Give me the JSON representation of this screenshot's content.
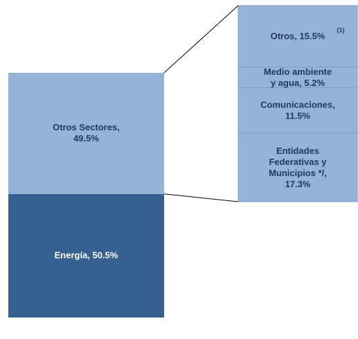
{
  "chart_data": {
    "type": "bar_of_bar",
    "main": [
      {
        "label": [
          "Energía, 50.5%"
        ],
        "value": 50.5,
        "color": "#366092",
        "text_color": "#ffffff"
      },
      {
        "label": [
          "Otros Sectores,",
          "49.5%"
        ],
        "value": 49.5,
        "color": "#95b3d7",
        "text_color": "#1f3864"
      }
    ],
    "breakdown": [
      {
        "label": [
          "Entidades",
          "Federativas y",
          "Municipios */,",
          "17.3%"
        ],
        "value": 17.3
      },
      {
        "label": [
          "Comunicaciones,",
          "11.5%"
        ],
        "value": 11.5
      },
      {
        "label": [
          "Medio ambiente",
          "y agua, 5.2%"
        ],
        "value": 5.2
      },
      {
        "label": [
          "Otros, 15.5%"
        ],
        "value": 15.5,
        "note": "(1)"
      }
    ],
    "breakdown_color": "#95b3d7",
    "breakdown_text_color": "#1f3864"
  }
}
